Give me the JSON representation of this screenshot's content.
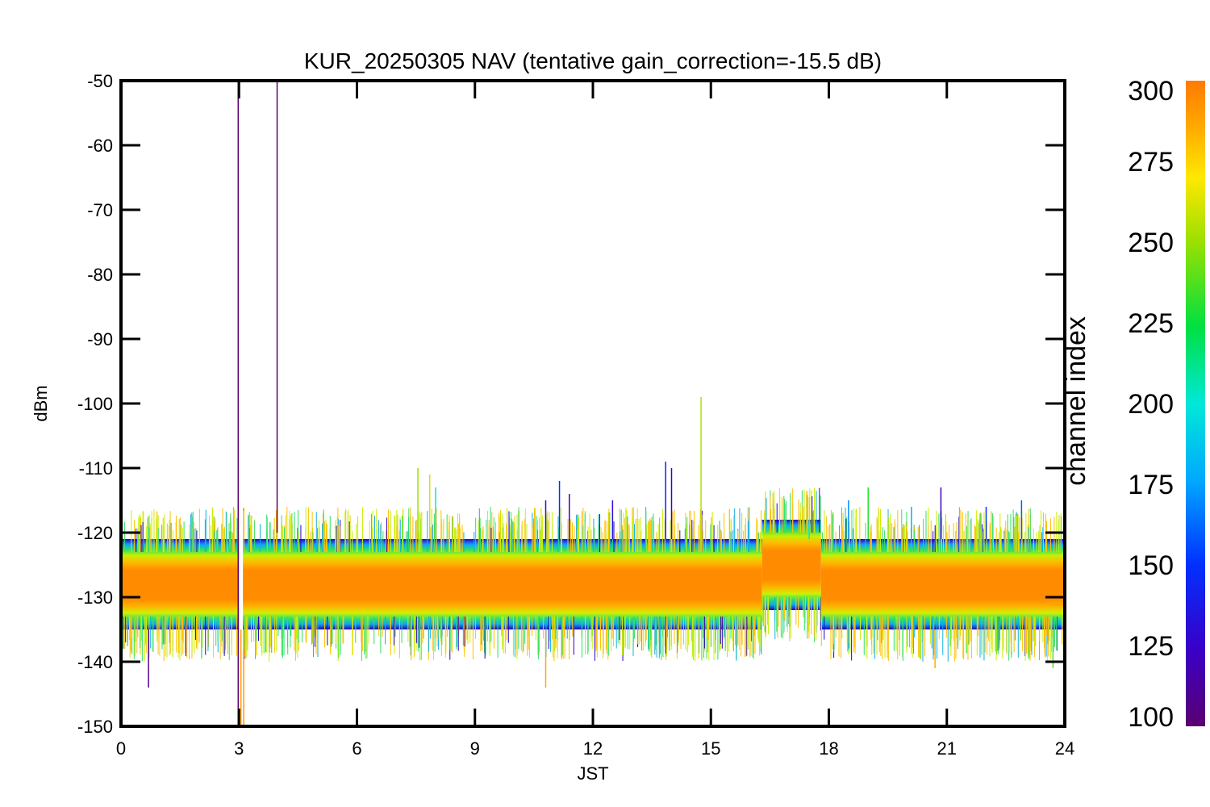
{
  "chart_data": {
    "type": "line",
    "title": "KUR_20250305 NAV (tentative gain_correction=-15.5 dB)",
    "xlabel": "JST",
    "ylabel": "dBm",
    "xlim": [
      0,
      24
    ],
    "ylim": [
      -150,
      -50
    ],
    "x_ticks": [
      "0",
      "3",
      "6",
      "9",
      "12",
      "15",
      "18",
      "21",
      "24"
    ],
    "y_ticks": [
      "-50",
      "-60",
      "-70",
      "-80",
      "-90",
      "-100",
      "-110",
      "-120",
      "-130",
      "-140",
      "-150"
    ],
    "colorbar": {
      "label": "channel index",
      "range": [
        100,
        300
      ],
      "ticks": [
        "300",
        "275",
        "250",
        "225",
        "200",
        "175",
        "150",
        "125",
        "100"
      ],
      "colormap": "rainbow (purple-blue-cyan-green-yellow-orange)"
    },
    "series_summary": {
      "baseline_band_dBm": [
        -135,
        -121
      ],
      "elevated_band_dBm": {
        "x_range": [
          16.3,
          17.8
        ],
        "band_dBm": [
          -132,
          -118
        ]
      },
      "data_gap_x": [
        3.0,
        3.1
      ]
    },
    "spikes": [
      {
        "x": 2.98,
        "y_top": -50,
        "y_bottom": -150,
        "channel": 100
      },
      {
        "x": 3.05,
        "y_top": -150,
        "y_bottom": -135,
        "channel": 290
      },
      {
        "x": 3.12,
        "y_top": -150,
        "y_bottom": -135,
        "channel": 290
      },
      {
        "x": 3.97,
        "y_top": -50,
        "y_bottom": -120,
        "channel": 100
      },
      {
        "x": 0.7,
        "y_top": -144,
        "y_bottom": -135,
        "channel": 110
      },
      {
        "x": 7.55,
        "y_top": -110,
        "y_bottom": -121,
        "channel": 250
      },
      {
        "x": 7.85,
        "y_top": -111,
        "y_bottom": -121,
        "channel": 260
      },
      {
        "x": 8.0,
        "y_top": -113,
        "y_bottom": -121,
        "channel": 200
      },
      {
        "x": 10.8,
        "y_top": -115,
        "y_bottom": -121,
        "channel": 130
      },
      {
        "x": 11.15,
        "y_top": -112,
        "y_bottom": -121,
        "channel": 150
      },
      {
        "x": 11.4,
        "y_top": -114,
        "y_bottom": -121,
        "channel": 120
      },
      {
        "x": 10.8,
        "y_top": -144,
        "y_bottom": -135,
        "channel": 285
      },
      {
        "x": 12.5,
        "y_top": -115,
        "y_bottom": -121,
        "channel": 130
      },
      {
        "x": 13.85,
        "y_top": -109,
        "y_bottom": -121,
        "channel": 140
      },
      {
        "x": 14.0,
        "y_top": -110,
        "y_bottom": -121,
        "channel": 120
      },
      {
        "x": 14.75,
        "y_top": -99,
        "y_bottom": -121,
        "channel": 255
      },
      {
        "x": 17.5,
        "y_top": -118,
        "y_bottom": -121,
        "channel": 200
      },
      {
        "x": 18.5,
        "y_top": -115,
        "y_bottom": -121,
        "channel": 170
      },
      {
        "x": 19.0,
        "y_top": -113,
        "y_bottom": -121,
        "channel": 230
      },
      {
        "x": 20.1,
        "y_top": -116,
        "y_bottom": -121,
        "channel": 180
      },
      {
        "x": 20.85,
        "y_top": -113,
        "y_bottom": -121,
        "channel": 120
      },
      {
        "x": 22.0,
        "y_top": -116,
        "y_bottom": -121,
        "channel": 150
      },
      {
        "x": 22.9,
        "y_top": -115,
        "y_bottom": -121,
        "channel": 160
      },
      {
        "x": 20.7,
        "y_top": -141,
        "y_bottom": -135,
        "channel": 285
      },
      {
        "x": 23.7,
        "y_top": -141,
        "y_bottom": -135,
        "channel": 240
      }
    ]
  }
}
